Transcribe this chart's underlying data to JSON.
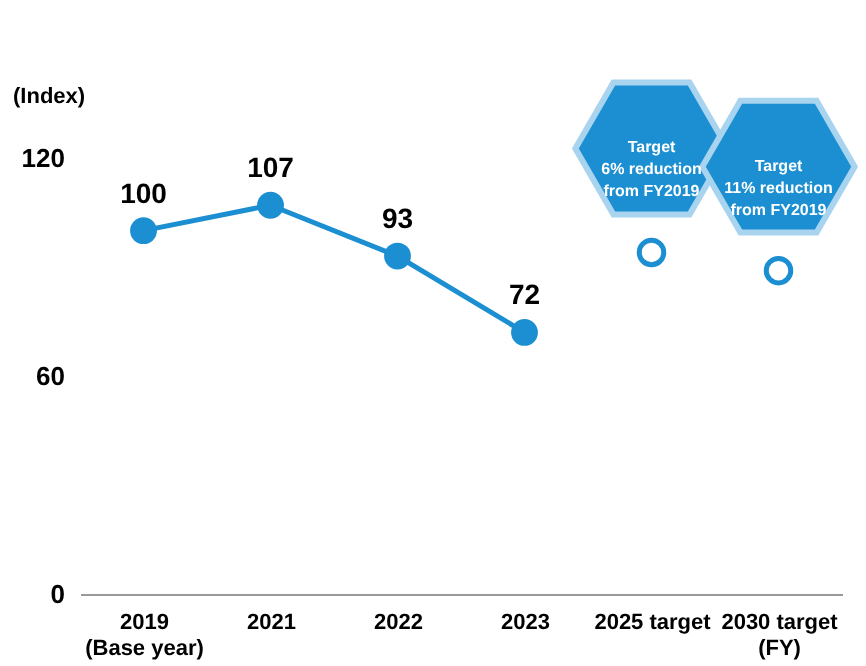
{
  "chart_data": {
    "type": "line",
    "ylabel": "(Index)",
    "categories": [
      "2019\n(Base year)",
      "2021",
      "2022",
      "2023",
      "2025 target",
      "2030 target\n(FY)"
    ],
    "series": [
      {
        "color": "#1b8fd1",
        "marker": "circle",
        "values": [
          100,
          107,
          93,
          72,
          null,
          null
        ],
        "value_labels": [
          "100",
          "107",
          "93",
          "72",
          null,
          null
        ]
      },
      {
        "type": "scatter",
        "color": "#1b8fd1",
        "marker": "circle",
        "values": [
          null,
          null,
          null,
          null,
          94,
          89
        ]
      }
    ],
    "annotations": [
      "Target\n6% reduction\nfrom FY2019",
      "Target\n11% reduction\nfrom FY2019"
    ],
    "ylim": [
      0,
      120
    ],
    "yticks": [
      0,
      60,
      120
    ],
    "grid": false
  }
}
